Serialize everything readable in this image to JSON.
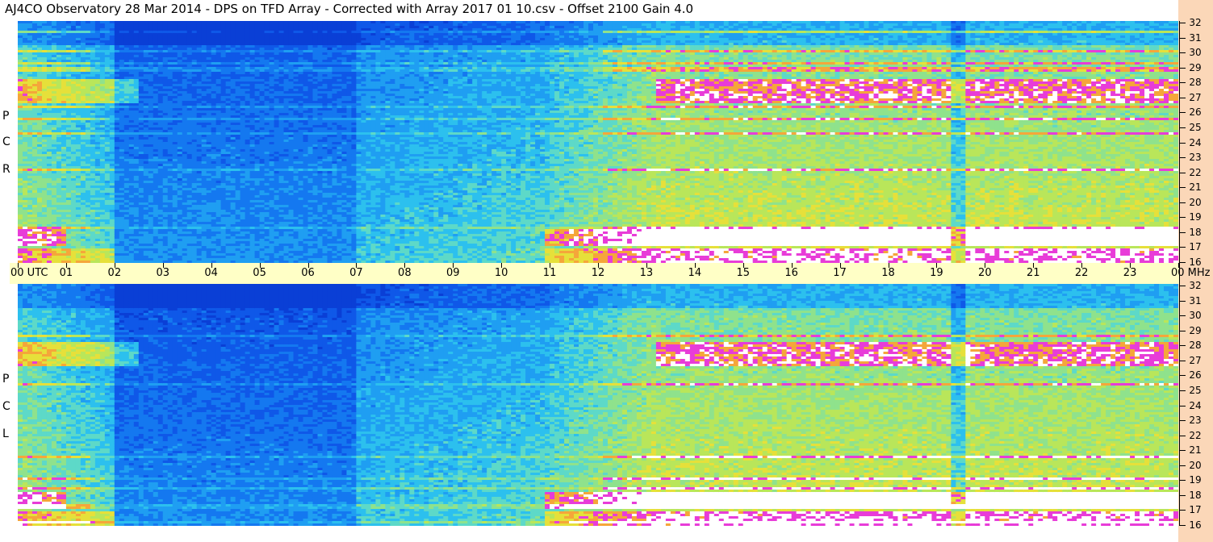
{
  "title": "AJ4CO Observatory  28 Mar 2014  -  DPS on TFD Array  -  Corrected with Array 2017 01 10.csv  -  Offset 2100  Gain 4.0",
  "chart_data": {
    "type": "heatmap",
    "panels": [
      {
        "name": "RCP",
        "label_letters": [
          "R",
          "C",
          "P"
        ]
      },
      {
        "name": "LCP",
        "label_letters": [
          "L",
          "C",
          "P"
        ]
      }
    ],
    "x_axis": {
      "ticks": [
        "00 UTC",
        "01",
        "02",
        "03",
        "04",
        "05",
        "06",
        "07",
        "08",
        "09",
        "10",
        "11",
        "12",
        "13",
        "14",
        "15",
        "16",
        "17",
        "18",
        "19",
        "20",
        "21",
        "22",
        "23",
        "00 MHz"
      ],
      "range": [
        0,
        24
      ]
    },
    "y_axis": {
      "ticks": [
        "32",
        "31",
        "30",
        "29",
        "28",
        "27",
        "26",
        "25",
        "24",
        "23",
        "22",
        "21",
        "20",
        "19",
        "18",
        "17",
        "16"
      ],
      "range": [
        16,
        32
      ]
    },
    "colors": {
      "low": "#0a3fd6",
      "mid": "#1fa6f0",
      "high": "#9be06a",
      "strong": "#e6e03a",
      "rfi": "#e83cd8",
      "saturated": "#ffffff",
      "axis_strip": "#ffffc6",
      "side_strip": "#fbd7b8"
    }
  }
}
